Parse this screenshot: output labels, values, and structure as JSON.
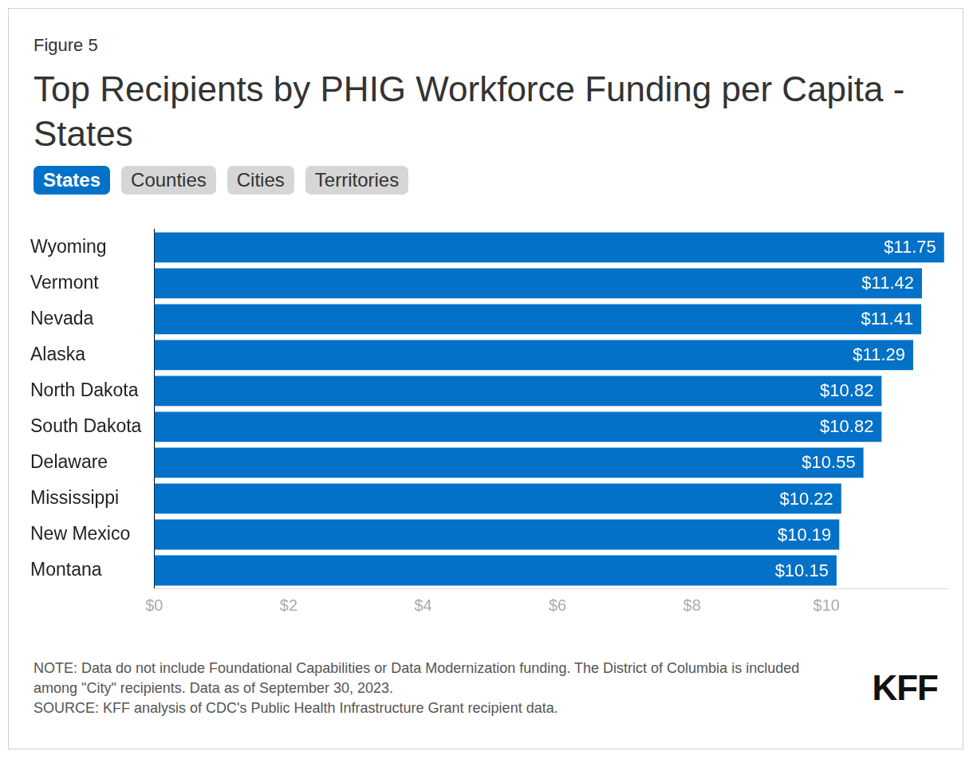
{
  "chart_data": {
    "type": "bar",
    "orientation": "horizontal",
    "figure_label": "Figure 5",
    "title": "Top Recipients by PHIG Workforce Funding per Capita - States",
    "tabs": [
      {
        "label": "States",
        "active": true
      },
      {
        "label": "Counties",
        "active": false
      },
      {
        "label": "Cities",
        "active": false
      },
      {
        "label": "Territories",
        "active": false
      }
    ],
    "categories": [
      "Wyoming",
      "Vermont",
      "Nevada",
      "Alaska",
      "North Dakota",
      "South Dakota",
      "Delaware",
      "Mississippi",
      "New Mexico",
      "Montana"
    ],
    "values": [
      11.75,
      11.42,
      11.41,
      11.29,
      10.82,
      10.82,
      10.55,
      10.22,
      10.19,
      10.15
    ],
    "value_labels": [
      "$11.75",
      "$11.42",
      "$11.41",
      "$11.29",
      "$10.82",
      "$10.82",
      "$10.55",
      "$10.22",
      "$10.19",
      "$10.15"
    ],
    "color": "#0271c7",
    "xlim": [
      0,
      11.8
    ],
    "xticks": [
      {
        "value": 0,
        "label": "$0"
      },
      {
        "value": 2,
        "label": "$2"
      },
      {
        "value": 4,
        "label": "$4"
      },
      {
        "value": 6,
        "label": "$6"
      },
      {
        "value": 8,
        "label": "$8"
      },
      {
        "value": 10,
        "label": "$10"
      }
    ],
    "grid": false,
    "data_labels": true,
    "notes": [
      "NOTE: Data do not include Foundational Capabilities or Data Modernization funding. The District of Columbia is included among \"City\" recipients. Data as of September 30, 2023.",
      "SOURCE: KFF analysis of CDC's Public Health Infrastructure Grant recipient data."
    ],
    "logo": "KFF"
  }
}
